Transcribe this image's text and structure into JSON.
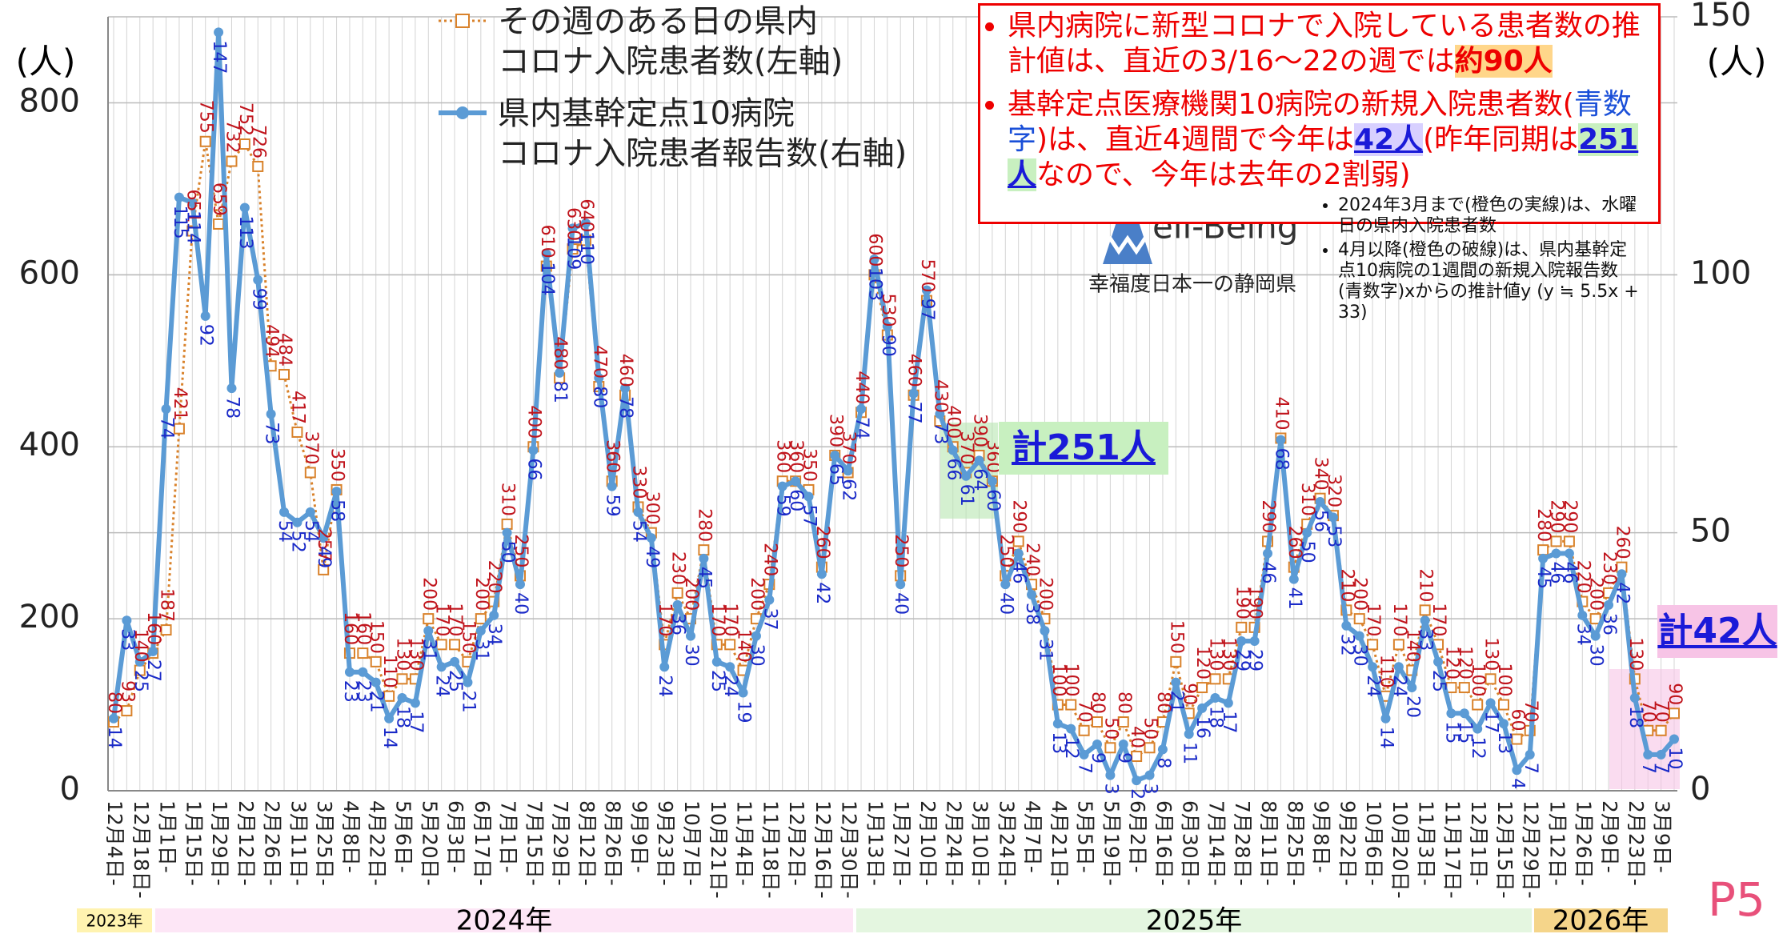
{
  "chart_data": {
    "type": "line",
    "categories": [
      "12月4日-",
      null,
      "12月18日-",
      null,
      "1月1日-",
      null,
      "1月15日-",
      null,
      "1月29日-",
      null,
      "2月12日-",
      null,
      "2月26日-",
      null,
      "3月11日-",
      null,
      "3月25日-",
      null,
      "4月8日-",
      null,
      "4月22日-",
      null,
      "5月6日-",
      null,
      "5月20日-",
      null,
      "6月3日-",
      null,
      "6月17日-",
      null,
      "7月1日-",
      null,
      "7月15日-",
      null,
      "7月29日-",
      null,
      "8月12日-",
      null,
      "8月26日-",
      null,
      "9月9日-",
      null,
      "9月23日-",
      null,
      "10月7日-",
      null,
      "10月21日-",
      null,
      "11月4日-",
      null,
      "11月18日-",
      null,
      "12月2日-",
      null,
      "12月16日-",
      null,
      "12月30日-",
      null,
      "1月13日-",
      null,
      "1月27日-",
      null,
      "2月10日-",
      null,
      "2月24日-",
      null,
      "3月10日-",
      null,
      "3月24日-",
      null,
      "4月7日-",
      null,
      "4月21日-",
      null,
      "5月5日-",
      null,
      "5月19日-",
      null,
      "6月2日-",
      null,
      "6月16日-",
      null,
      "6月30日-",
      null,
      "7月14日-",
      null,
      "7月28日-",
      null,
      "8月11日-",
      null,
      "8月25日-",
      null,
      "9月8日-",
      null,
      "9月22日-",
      null,
      "10月6日-",
      null,
      "10月20日-",
      null,
      "11月3日-",
      null,
      "11月17日-",
      null,
      "12月1日-",
      null,
      "12月15日-",
      null,
      "12月29日-",
      null,
      "1月12日-",
      null,
      "1月26日-",
      null,
      "2月9日-",
      null,
      "2月23日-",
      null,
      "3月9日-",
      null
    ],
    "series": [
      {
        "name": "その週のある日の県内\nコロナ入院患者数(左軸)",
        "color": "#d9822b",
        "axis": "y",
        "values": [
          80,
          93,
          140,
          160,
          187,
          421,
          651,
          755,
          659,
          732,
          752,
          726,
          494,
          484,
          417,
          370,
          257,
          350,
          160,
          160,
          150,
          110,
          130,
          130,
          200,
          170,
          170,
          150,
          200,
          220,
          310,
          250,
          400,
          610,
          480,
          630,
          640,
          470,
          360,
          460,
          330,
          300,
          170,
          230,
          200,
          280,
          170,
          170,
          140,
          200,
          240,
          360,
          360,
          350,
          260,
          390,
          370,
          440,
          600,
          530,
          250,
          460,
          570,
          430,
          400,
          370,
          390,
          360,
          250,
          290,
          240,
          200,
          100,
          100,
          70,
          80,
          50,
          80,
          40,
          50,
          80,
          150,
          90,
          120,
          130,
          130,
          190,
          190,
          290,
          410,
          260,
          310,
          340,
          320,
          210,
          200,
          170,
          110,
          170,
          140,
          210,
          170,
          120,
          120,
          100,
          130,
          100,
          60,
          70,
          280,
          290,
          290,
          220,
          200,
          230,
          260,
          130,
          70,
          70,
          90
        ]
      },
      {
        "name": "県内基幹定点10病院\nコロナ入院患者報告数(右軸)",
        "color": "#5b9bd5",
        "axis": "y2",
        "values": [
          14,
          33,
          25,
          27,
          74,
          115,
          114,
          92,
          147,
          78,
          113,
          99,
          73,
          54,
          52,
          54,
          49,
          58,
          23,
          23,
          21,
          14,
          18,
          17,
          31,
          24,
          25,
          21,
          31,
          34,
          50,
          40,
          66,
          104,
          81,
          109,
          110,
          80,
          59,
          78,
          54,
          49,
          24,
          36,
          30,
          45,
          25,
          24,
          19,
          30,
          37,
          59,
          60,
          57,
          42,
          65,
          62,
          74,
          103,
          90,
          40,
          77,
          97,
          73,
          66,
          61,
          64,
          60,
          40,
          46,
          38,
          31,
          13,
          12,
          7,
          9,
          3,
          9,
          2,
          3,
          8,
          21,
          11,
          16,
          18,
          17,
          29,
          29,
          46,
          68,
          41,
          50,
          56,
          53,
          32,
          30,
          24,
          14,
          24,
          20,
          33,
          25,
          15,
          15,
          12,
          17,
          13,
          4,
          7,
          45,
          46,
          46,
          34,
          30,
          36,
          42,
          18,
          7,
          7,
          10
        ]
      }
    ],
    "ylim": [
      0,
      900
    ],
    "yticks": [
      0,
      200,
      400,
      600,
      800
    ],
    "y2lim": [
      0,
      150
    ],
    "y2ticks": [
      0,
      50,
      100,
      150
    ],
    "y_unit": "(人)",
    "y2_unit": "(人)",
    "grid": true,
    "box": {
      "b1": [
        "県内病院に新型コロナで入院している患者数の推計値は、直近の3/16～22の週では",
        "約90人"
      ],
      "b2": [
        "基幹定点医療機関10病院の新規入院患者数(",
        "青数字",
        ")は、直近4週間で今年は",
        "42人",
        "(昨年同期は",
        "251人",
        "なので、今年は去年の2割弱)"
      ]
    },
    "logo": {
      "name": "ell-Being",
      "tagline": "幸福度日本一の静岡県"
    },
    "notes": [
      "2024年3月まで(橙色の実線)は、水曜日の県内入院患者数",
      "4月以降(橙色の破線)は、県内基幹定点10病院の1週間の新規入院報告数(青数字)xからの推計値y (y ≒ 5.5x + 33)"
    ],
    "callouts": [
      "計251人",
      "計42人"
    ],
    "years": [
      "2023年",
      "2024年",
      "2025年",
      "2026年"
    ],
    "page": "P5"
  }
}
